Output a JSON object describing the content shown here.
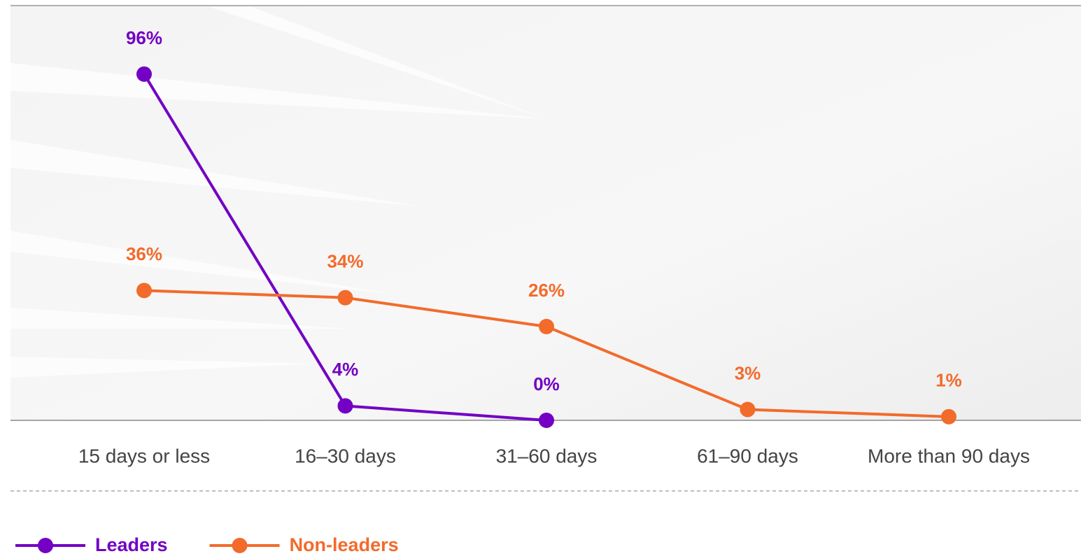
{
  "chart_data": {
    "type": "line",
    "categories": [
      "15 days or less",
      "16–30 days",
      "31–60 days",
      "61–90 days",
      "More than 90 days"
    ],
    "series": [
      {
        "name": "Leaders",
        "color": "#7300c4",
        "values": [
          96,
          4,
          0,
          null,
          null
        ],
        "value_labels": [
          "96%",
          "4%",
          "0%",
          null,
          null
        ]
      },
      {
        "name": "Non-leaders",
        "color": "#f26b2b",
        "values": [
          36,
          34,
          26,
          3,
          1
        ],
        "value_labels": [
          "36%",
          "34%",
          "26%",
          "3%",
          "1%"
        ]
      }
    ],
    "ylim": [
      0,
      115
    ],
    "legend": "bottom-left"
  }
}
